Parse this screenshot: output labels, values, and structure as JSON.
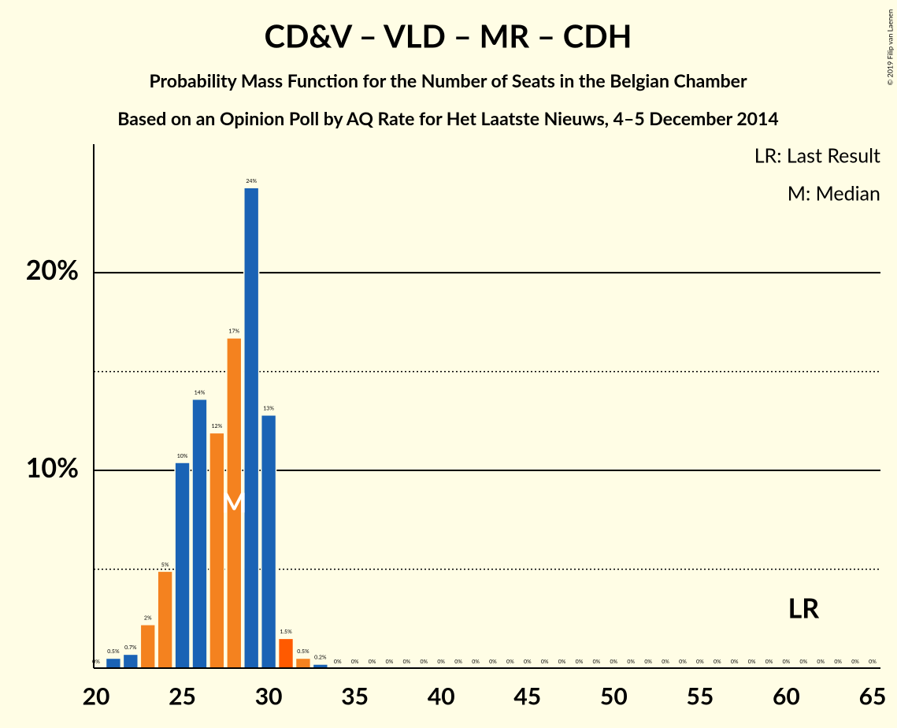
{
  "chart_data": {
    "type": "bar",
    "title": "CD&V – VLD – MR – CDH",
    "subtitle": "Probability Mass Function for the Number of Seats in the Belgian Chamber",
    "subtitle2": "Based on an Opinion Poll by AQ Rate for Het Laatste Nieuws, 4–5 December 2014",
    "credit": "© 2019 Filip van Laenen",
    "legend": [
      "LR: Last Result",
      "M: Median"
    ],
    "x": [
      20,
      21,
      22,
      23,
      24,
      25,
      26,
      27,
      28,
      29,
      30,
      31,
      32,
      33,
      34,
      35,
      36,
      37,
      38,
      39,
      40,
      41,
      42,
      43,
      44,
      45,
      46,
      47,
      48,
      49,
      50,
      51,
      52,
      53,
      54,
      55,
      56,
      57,
      58,
      59,
      60,
      61,
      62,
      63,
      64,
      65
    ],
    "values": [
      0,
      0.5,
      0.7,
      2.2,
      4.9,
      10.4,
      13.6,
      11.9,
      16.7,
      24.3,
      12.8,
      1.5,
      0.5,
      0.2,
      0,
      0,
      0,
      0,
      0,
      0,
      0,
      0,
      0,
      0,
      0,
      0,
      0,
      0,
      0,
      0,
      0,
      0,
      0,
      0,
      0,
      0,
      0,
      0,
      0,
      0,
      0,
      0,
      0,
      0,
      0,
      0
    ],
    "value_labels": [
      "0%",
      "0.5%",
      "0.7%",
      "2%",
      "5%",
      "10%",
      "14%",
      "12%",
      "17%",
      "24%",
      "13%",
      "1.5%",
      "0.5%",
      "0.2%",
      "0%",
      "0%",
      "0%",
      "0%",
      "0%",
      "0%",
      "0%",
      "0%",
      "0%",
      "0%",
      "0%",
      "0%",
      "0%",
      "0%",
      "0%",
      "0%",
      "0%",
      "0%",
      "0%",
      "0%",
      "0%",
      "0%",
      "0%",
      "0%",
      "0%",
      "0%",
      "0%",
      "0%",
      "0%",
      "0%",
      "0%",
      "0%"
    ],
    "colors": [
      "#1a63b5",
      "#1a63b5",
      "#1a63b5",
      "#f4821f",
      "#f4821f",
      "#1a63b5",
      "#1a63b5",
      "#f4821f",
      "#f4821f",
      "#1a63b5",
      "#1a63b5",
      "#ff5a00",
      "#f4821f",
      "#1a63b5",
      "#1a63b5",
      "#1a63b5",
      "#1a63b5",
      "#1a63b5",
      "#1a63b5",
      "#1a63b5",
      "#1a63b5",
      "#1a63b5",
      "#1a63b5",
      "#1a63b5",
      "#1a63b5",
      "#1a63b5",
      "#1a63b5",
      "#1a63b5",
      "#1a63b5",
      "#1a63b5",
      "#1a63b5",
      "#1a63b5",
      "#1a63b5",
      "#1a63b5",
      "#1a63b5",
      "#1a63b5",
      "#1a63b5",
      "#1a63b5",
      "#1a63b5",
      "#1a63b5",
      "#1a63b5",
      "#1a63b5",
      "#1a63b5",
      "#1a63b5",
      "#1a63b5",
      "#1a63b5"
    ],
    "xlim": [
      20,
      65
    ],
    "xticks": [
      20,
      25,
      30,
      35,
      40,
      45,
      50,
      55,
      60,
      65
    ],
    "ylim": [
      0,
      26.5
    ],
    "yticks": [
      {
        "value": 10,
        "label": "10%"
      },
      {
        "value": 20,
        "label": "20%"
      }
    ],
    "yminorticks": [
      5,
      15
    ],
    "median": {
      "x": 28,
      "label": "M"
    },
    "last_result": {
      "x": 61,
      "label": "LR"
    }
  }
}
